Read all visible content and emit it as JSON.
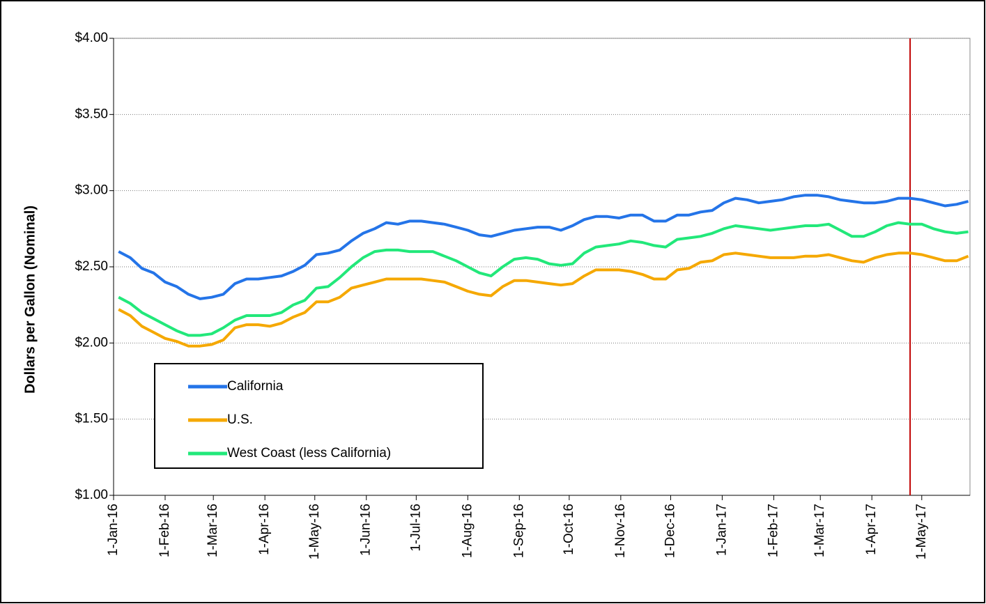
{
  "chart_data": {
    "type": "line",
    "y_label": "Dollars per Gallon (Nominal)",
    "x": [
      "2016-01-04",
      "2016-01-11",
      "2016-01-18",
      "2016-01-25",
      "2016-02-01",
      "2016-02-08",
      "2016-02-15",
      "2016-02-22",
      "2016-02-29",
      "2016-03-07",
      "2016-03-14",
      "2016-03-21",
      "2016-03-28",
      "2016-04-04",
      "2016-04-11",
      "2016-04-18",
      "2016-04-25",
      "2016-05-02",
      "2016-05-09",
      "2016-05-16",
      "2016-05-23",
      "2016-05-30",
      "2016-06-06",
      "2016-06-13",
      "2016-06-20",
      "2016-06-27",
      "2016-07-04",
      "2016-07-11",
      "2016-07-18",
      "2016-07-25",
      "2016-08-01",
      "2016-08-08",
      "2016-08-15",
      "2016-08-22",
      "2016-08-29",
      "2016-09-05",
      "2016-09-12",
      "2016-09-19",
      "2016-09-26",
      "2016-10-03",
      "2016-10-10",
      "2016-10-17",
      "2016-10-24",
      "2016-10-31",
      "2016-11-07",
      "2016-11-14",
      "2016-11-21",
      "2016-11-28",
      "2016-12-05",
      "2016-12-12",
      "2016-12-19",
      "2016-12-26",
      "2017-01-02",
      "2017-01-09",
      "2017-01-16",
      "2017-01-23",
      "2017-01-30",
      "2017-02-06",
      "2017-02-13",
      "2017-02-20",
      "2017-02-27",
      "2017-03-06",
      "2017-03-13",
      "2017-03-20",
      "2017-03-27",
      "2017-04-03",
      "2017-04-10",
      "2017-04-17",
      "2017-04-24",
      "2017-05-01",
      "2017-05-08",
      "2017-05-15",
      "2017-05-22",
      "2017-05-29"
    ],
    "series": [
      {
        "name": "California",
        "color": "#2474e8",
        "values": [
          2.6,
          2.56,
          2.49,
          2.46,
          2.4,
          2.37,
          2.32,
          2.29,
          2.3,
          2.32,
          2.39,
          2.42,
          2.42,
          2.43,
          2.44,
          2.47,
          2.51,
          2.58,
          2.59,
          2.61,
          2.67,
          2.72,
          2.75,
          2.79,
          2.78,
          2.8,
          2.8,
          2.79,
          2.78,
          2.76,
          2.74,
          2.71,
          2.7,
          2.72,
          2.74,
          2.75,
          2.76,
          2.76,
          2.74,
          2.77,
          2.81,
          2.83,
          2.83,
          2.82,
          2.84,
          2.84,
          2.8,
          2.8,
          2.84,
          2.84,
          2.86,
          2.87,
          2.92,
          2.95,
          2.94,
          2.92,
          2.93,
          2.94,
          2.96,
          2.97,
          2.97,
          2.96,
          2.94,
          2.93,
          2.92,
          2.92,
          2.93,
          2.95,
          2.95,
          2.94,
          2.92,
          2.9,
          2.91,
          2.93
        ]
      },
      {
        "name": "U.S.",
        "color": "#f5a800",
        "values": [
          2.22,
          2.18,
          2.11,
          2.07,
          2.03,
          2.01,
          1.98,
          1.98,
          1.99,
          2.02,
          2.1,
          2.12,
          2.12,
          2.11,
          2.13,
          2.17,
          2.2,
          2.27,
          2.27,
          2.3,
          2.36,
          2.38,
          2.4,
          2.42,
          2.42,
          2.42,
          2.42,
          2.41,
          2.4,
          2.37,
          2.34,
          2.32,
          2.31,
          2.37,
          2.41,
          2.41,
          2.4,
          2.39,
          2.38,
          2.39,
          2.44,
          2.48,
          2.48,
          2.48,
          2.47,
          2.45,
          2.42,
          2.42,
          2.48,
          2.49,
          2.53,
          2.54,
          2.58,
          2.59,
          2.58,
          2.57,
          2.56,
          2.56,
          2.56,
          2.57,
          2.57,
          2.58,
          2.56,
          2.54,
          2.53,
          2.56,
          2.58,
          2.59,
          2.59,
          2.58,
          2.56,
          2.54,
          2.54,
          2.57
        ]
      },
      {
        "name": "West Coast (less California)",
        "color": "#22e87a",
        "values": [
          2.3,
          2.26,
          2.2,
          2.16,
          2.12,
          2.08,
          2.05,
          2.05,
          2.06,
          2.1,
          2.15,
          2.18,
          2.18,
          2.18,
          2.2,
          2.25,
          2.28,
          2.36,
          2.37,
          2.43,
          2.5,
          2.56,
          2.6,
          2.61,
          2.61,
          2.6,
          2.6,
          2.6,
          2.57,
          2.54,
          2.5,
          2.46,
          2.44,
          2.5,
          2.55,
          2.56,
          2.55,
          2.52,
          2.51,
          2.52,
          2.59,
          2.63,
          2.64,
          2.65,
          2.67,
          2.66,
          2.64,
          2.63,
          2.68,
          2.69,
          2.7,
          2.72,
          2.75,
          2.77,
          2.76,
          2.75,
          2.74,
          2.75,
          2.76,
          2.77,
          2.77,
          2.78,
          2.74,
          2.7,
          2.7,
          2.73,
          2.77,
          2.79,
          2.78,
          2.78,
          2.75,
          2.73,
          2.72,
          2.73
        ]
      }
    ],
    "xlim": [
      "2016-01-01",
      "2017-05-30"
    ],
    "xticks": [
      {
        "value": "2016-01-01",
        "label": "1-Jan-16"
      },
      {
        "value": "2016-02-01",
        "label": "1-Feb-16"
      },
      {
        "value": "2016-03-01",
        "label": "1-Mar-16"
      },
      {
        "value": "2016-04-01",
        "label": "1-Apr-16"
      },
      {
        "value": "2016-05-01",
        "label": "1-May-16"
      },
      {
        "value": "2016-06-01",
        "label": "1-Jun-16"
      },
      {
        "value": "2016-07-01",
        "label": "1-Jul-16"
      },
      {
        "value": "2016-08-01",
        "label": "1-Aug-16"
      },
      {
        "value": "2016-09-01",
        "label": "1-Sep-16"
      },
      {
        "value": "2016-10-01",
        "label": "1-Oct-16"
      },
      {
        "value": "2016-11-01",
        "label": "1-Nov-16"
      },
      {
        "value": "2016-12-01",
        "label": "1-Dec-16"
      },
      {
        "value": "2017-01-01",
        "label": "1-Jan-17"
      },
      {
        "value": "2017-02-01",
        "label": "1-Feb-17"
      },
      {
        "value": "2017-03-01",
        "label": "1-Mar-17"
      },
      {
        "value": "2017-04-01",
        "label": "1-Apr-17"
      },
      {
        "value": "2017-05-01",
        "label": "1-May-17"
      }
    ],
    "ylim": [
      1,
      4
    ],
    "yticks": [
      {
        "value": 1,
        "label": "$1.00"
      },
      {
        "value": 1.5,
        "label": "$1.50"
      },
      {
        "value": 2,
        "label": "$2.00"
      },
      {
        "value": 2.5,
        "label": "$2.50"
      },
      {
        "value": 3,
        "label": "$3.00"
      },
      {
        "value": 3.5,
        "label": "$3.50"
      },
      {
        "value": 4,
        "label": "$4.00"
      }
    ],
    "grid": true,
    "marker_line": {
      "x": "2017-04-24",
      "color": "#c00000"
    },
    "legend": "lower left"
  }
}
